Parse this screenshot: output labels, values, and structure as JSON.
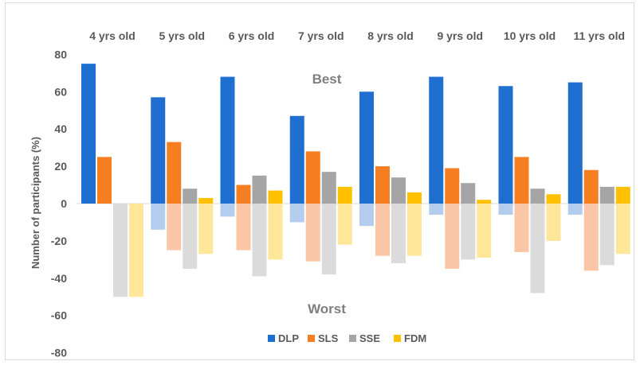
{
  "chart_data": {
    "type": "bar",
    "ylabel": "Number of participants (%)",
    "ylim": [
      -80,
      80
    ],
    "yticks": [
      80,
      60,
      40,
      20,
      0,
      -20,
      -40,
      -60,
      -80
    ],
    "categories": [
      "4 yrs old",
      "5 yrs old",
      "6 yrs old",
      "7 yrs old",
      "8 yrs old",
      "9 yrs old",
      "10 yrs old",
      "11 yrs old"
    ],
    "annotations": {
      "best": "Best",
      "worst": "Worst"
    },
    "legend_position": "bottom",
    "grid": false,
    "series": [
      {
        "name": "DLP",
        "color": "#1f6fd0",
        "light_color": "#b4cdee",
        "best": [
          75,
          57,
          68,
          47,
          60,
          68,
          63,
          65
        ],
        "worst": [
          0,
          -14,
          -7,
          -10,
          -12,
          -6,
          -6,
          -6
        ]
      },
      {
        "name": "SLS",
        "color": "#f57e20",
        "light_color": "#fbc6a5",
        "best": [
          25,
          33,
          10,
          28,
          20,
          19,
          25,
          18
        ],
        "worst": [
          0,
          -25,
          -25,
          -31,
          -28,
          -35,
          -26,
          -36
        ]
      },
      {
        "name": "SSE",
        "color": "#a5a5a5",
        "light_color": "#dbdbdb",
        "best": [
          0,
          8,
          15,
          17,
          14,
          11,
          8,
          9
        ],
        "worst": [
          -50,
          -35,
          -39,
          -38,
          -32,
          -30,
          -48,
          -33
        ]
      },
      {
        "name": "FDM",
        "color": "#ffc000",
        "light_color": "#ffe699",
        "best": [
          0,
          3,
          7,
          9,
          6,
          2,
          5,
          9
        ],
        "worst": [
          -50,
          -27,
          -30,
          -22,
          -28,
          -29,
          -20,
          -27
        ]
      }
    ]
  }
}
